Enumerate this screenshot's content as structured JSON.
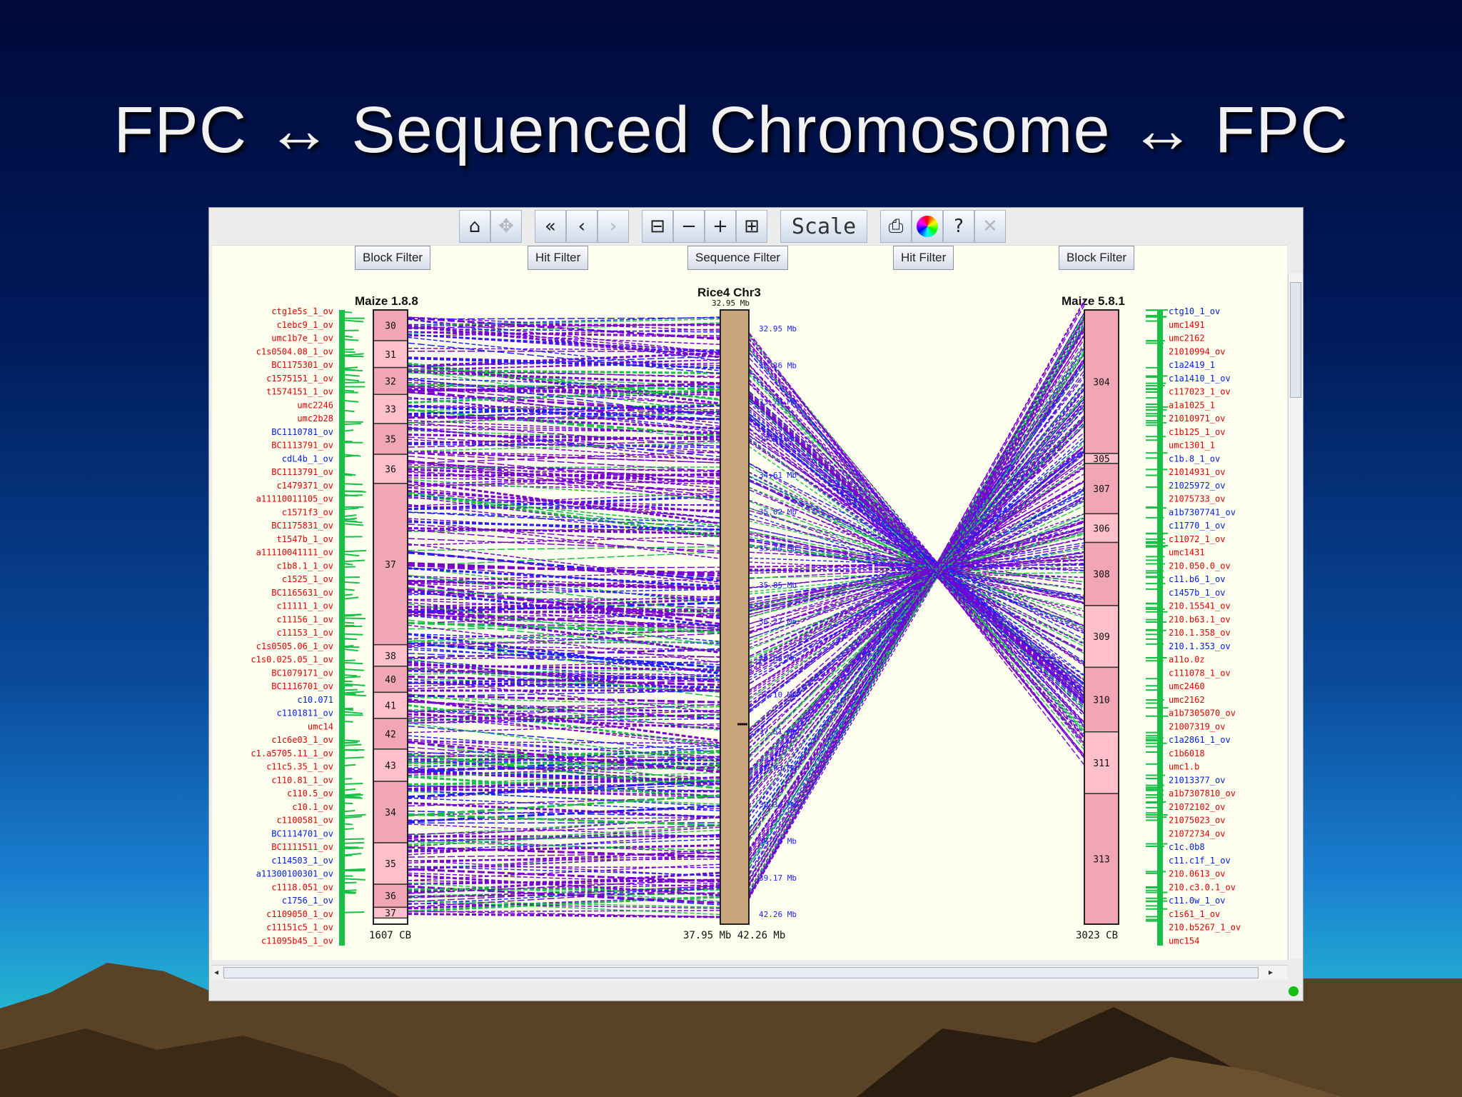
{
  "slide": {
    "title": "FPC ↔ Sequenced Chromosome ↔ FPC"
  },
  "toolbar": {
    "buttons": [
      {
        "icon": "home-icon",
        "glyph": "⌂",
        "disabled": false
      },
      {
        "icon": "pan-icon",
        "glyph": "✥",
        "disabled": true
      },
      {
        "icon": "fast-back-icon",
        "glyph": "«",
        "disabled": false
      },
      {
        "icon": "back-icon",
        "glyph": "‹",
        "disabled": false
      },
      {
        "icon": "forward-icon",
        "glyph": "›",
        "disabled": true
      },
      {
        "icon": "zoom-out-more-icon",
        "glyph": "⊟",
        "disabled": false
      },
      {
        "icon": "zoom-out-icon",
        "glyph": "−",
        "disabled": false
      },
      {
        "icon": "zoom-in-icon",
        "glyph": "+",
        "disabled": false
      },
      {
        "icon": "zoom-in-more-icon",
        "glyph": "⊞",
        "disabled": false
      }
    ],
    "scale_label": "Scale"
  },
  "filters": {
    "left_block": "Block Filter",
    "left_hit": "Hit Filter",
    "sequence": "Sequence Filter",
    "right_hit": "Hit Filter",
    "right_block": "Block Filter"
  },
  "tracks": {
    "left": {
      "name": "Maize 1.8.8",
      "footer": "1607 CB",
      "blocks": [
        "30",
        "31",
        "32",
        "33",
        "35",
        "36",
        "37",
        "38",
        "40",
        "41",
        "42",
        "43",
        "34",
        "35",
        "36",
        "37"
      ]
    },
    "center": {
      "name": "Rice4 Chr3",
      "subtitle": "32.95 Mb",
      "footer": "37.95 Mb 42.26 Mb"
    },
    "right": {
      "name": "Maize 5.8.1",
      "footer": "3023 CB",
      "blocks": [
        "304",
        "305",
        "307",
        "306",
        "308",
        "309",
        "310",
        "311",
        "313"
      ]
    }
  },
  "left_markers": [
    {
      "t": "ctg1e5s_1_ov",
      "c": "red"
    },
    {
      "t": "c1ebc9_1_ov",
      "c": "red"
    },
    {
      "t": "umc1b7e_1_ov",
      "c": "red"
    },
    {
      "t": "c1s0504.08_1_ov",
      "c": "red"
    },
    {
      "t": "BC1175301_ov",
      "c": "red"
    },
    {
      "t": "c1575151_1_ov",
      "c": "red"
    },
    {
      "t": "t1574151_1_ov",
      "c": "red"
    },
    {
      "t": "umc2246",
      "c": "red"
    },
    {
      "t": "umc2b28",
      "c": "red"
    },
    {
      "t": "BC1110781_ov",
      "c": "blue"
    },
    {
      "t": "BC1113791_ov",
      "c": "red"
    },
    {
      "t": "cdL4b_1_ov",
      "c": "blue"
    },
    {
      "t": "BC1113791_ov",
      "c": "red"
    },
    {
      "t": "c1479371_ov",
      "c": "red"
    },
    {
      "t": "a11110011105_ov",
      "c": "red"
    },
    {
      "t": "c1571f3_ov",
      "c": "red"
    },
    {
      "t": "BC1175831_ov",
      "c": "red"
    },
    {
      "t": "t1547b_1_ov",
      "c": "red"
    },
    {
      "t": "a11110041111_ov",
      "c": "red"
    },
    {
      "t": "c1b8.1_1_ov",
      "c": "red"
    },
    {
      "t": "c1525_1_ov",
      "c": "red"
    },
    {
      "t": "BC1165631_ov",
      "c": "red"
    },
    {
      "t": "c11111_1_ov",
      "c": "red"
    },
    {
      "t": "c11156_1_ov",
      "c": "red"
    },
    {
      "t": "c11153_1_ov",
      "c": "red"
    },
    {
      "t": "c1s0505.06_1_ov",
      "c": "red"
    },
    {
      "t": "c1s0.025.05_1_ov",
      "c": "red"
    },
    {
      "t": "BC1079171_ov",
      "c": "red"
    },
    {
      "t": "BC1116701_ov",
      "c": "red"
    },
    {
      "t": "c10.071",
      "c": "blue"
    },
    {
      "t": "c1101811_ov",
      "c": "blue"
    },
    {
      "t": "umc14",
      "c": "red"
    },
    {
      "t": "c1c6e03_1_ov",
      "c": "red"
    },
    {
      "t": "c1.a5705.11_1_ov",
      "c": "red"
    },
    {
      "t": "c11c5.35_1_ov",
      "c": "red"
    },
    {
      "t": "c110.81_1_ov",
      "c": "red"
    },
    {
      "t": "c110.5_ov",
      "c": "red"
    },
    {
      "t": "c10.1_ov",
      "c": "red"
    },
    {
      "t": "c1100581_ov",
      "c": "red"
    },
    {
      "t": "BC1114701_ov",
      "c": "blue"
    },
    {
      "t": "BC1111511_ov",
      "c": "red"
    },
    {
      "t": "c114503_1_ov",
      "c": "blue"
    },
    {
      "t": "a11300100301_ov",
      "c": "blue"
    },
    {
      "t": "c1118.051_ov",
      "c": "red"
    },
    {
      "t": "c1756_1_ov",
      "c": "blue"
    },
    {
      "t": "c1109050_1_ov",
      "c": "red"
    },
    {
      "t": "c11151c5_1_ov",
      "c": "red"
    },
    {
      "t": "c11095b45_1_ov",
      "c": "red"
    }
  ],
  "right_markers": [
    {
      "t": "ctg10_1_ov",
      "c": "blue"
    },
    {
      "t": "umc1491",
      "c": "red"
    },
    {
      "t": "umc2162",
      "c": "red"
    },
    {
      "t": "21010994_ov",
      "c": "red"
    },
    {
      "t": "c1a2419_1",
      "c": "blue"
    },
    {
      "t": "c1a1410_1_ov",
      "c": "blue"
    },
    {
      "t": "c117023_1_ov",
      "c": "red"
    },
    {
      "t": "a1a1025_1",
      "c": "red"
    },
    {
      "t": "21010971_ov",
      "c": "red"
    },
    {
      "t": "c1b125_1_ov",
      "c": "red"
    },
    {
      "t": "umc1301_1",
      "c": "red"
    },
    {
      "t": "c1b.8_1_ov",
      "c": "blue"
    },
    {
      "t": "21014931_ov",
      "c": "red"
    },
    {
      "t": "21025972_ov",
      "c": "blue"
    },
    {
      "t": "21075733_ov",
      "c": "red"
    },
    {
      "t": "a1b7307741_ov",
      "c": "blue"
    },
    {
      "t": "c11770_1_ov",
      "c": "blue"
    },
    {
      "t": "c11072_1_ov",
      "c": "red"
    },
    {
      "t": "umc1431",
      "c": "red"
    },
    {
      "t": "210.050.0_ov",
      "c": "red"
    },
    {
      "t": "c11.b6_1_ov",
      "c": "blue"
    },
    {
      "t": "c1457b_1_ov",
      "c": "blue"
    },
    {
      "t": "210.15541_ov",
      "c": "red"
    },
    {
      "t": "210.b63.1_ov",
      "c": "red"
    },
    {
      "t": "210.1.358_ov",
      "c": "red"
    },
    {
      "t": "210.1.353_ov",
      "c": "blue"
    },
    {
      "t": "a11o.0z",
      "c": "red"
    },
    {
      "t": "c111078_1_ov",
      "c": "red"
    },
    {
      "t": "umc2460",
      "c": "red"
    },
    {
      "t": "umc2162",
      "c": "red"
    },
    {
      "t": "a1b7305070_ov",
      "c": "red"
    },
    {
      "t": "21007319_ov",
      "c": "red"
    },
    {
      "t": "c1a2861_1_ov",
      "c": "blue"
    },
    {
      "t": "c1b6018",
      "c": "red"
    },
    {
      "t": "umc1.b",
      "c": "red"
    },
    {
      "t": "21013377_ov",
      "c": "blue"
    },
    {
      "t": "a1b7307810_ov",
      "c": "red"
    },
    {
      "t": "21072102_ov",
      "c": "red"
    },
    {
      "t": "21075023_ov",
      "c": "red"
    },
    {
      "t": "21072734_ov",
      "c": "red"
    },
    {
      "t": "c1c.0b8",
      "c": "blue"
    },
    {
      "t": "c11.c1f_1_ov",
      "c": "blue"
    },
    {
      "t": "210.0613_ov",
      "c": "red"
    },
    {
      "t": "210.c3.0.1_ov",
      "c": "red"
    },
    {
      "t": "c11.0w_1_ov",
      "c": "blue"
    },
    {
      "t": "c1s61_1_ov",
      "c": "red"
    },
    {
      "t": "210.b5267_1_ov",
      "c": "red"
    },
    {
      "t": "umc154",
      "c": "red"
    }
  ],
  "center_ticks": [
    "32.95 Mb",
    "33.36 Mb",
    "33.78 Mb",
    "34.19 Mb",
    "34.61 Mb",
    "35.02 Mb",
    "35.44 Mb",
    "35.85 Mb",
    "36.27 Mb",
    "36.68 Mb",
    "37.10 Mb",
    "37.51 Mb",
    "37.93 Mb",
    "38.34 Mb",
    "38.76 Mb",
    "39.17 Mb",
    "42.26 Mb"
  ],
  "colors": {
    "hit_purple": "#7a00d0",
    "hit_green": "#18c048",
    "hit_blue": "#2020ff",
    "marker_red": "#e00000",
    "marker_blue": "#0020e0",
    "block_pink": "#f0a6b4",
    "block_pink_light": "#ffc0cc",
    "sequence_tan": "#c8a57a",
    "status_green": "#11c011"
  }
}
